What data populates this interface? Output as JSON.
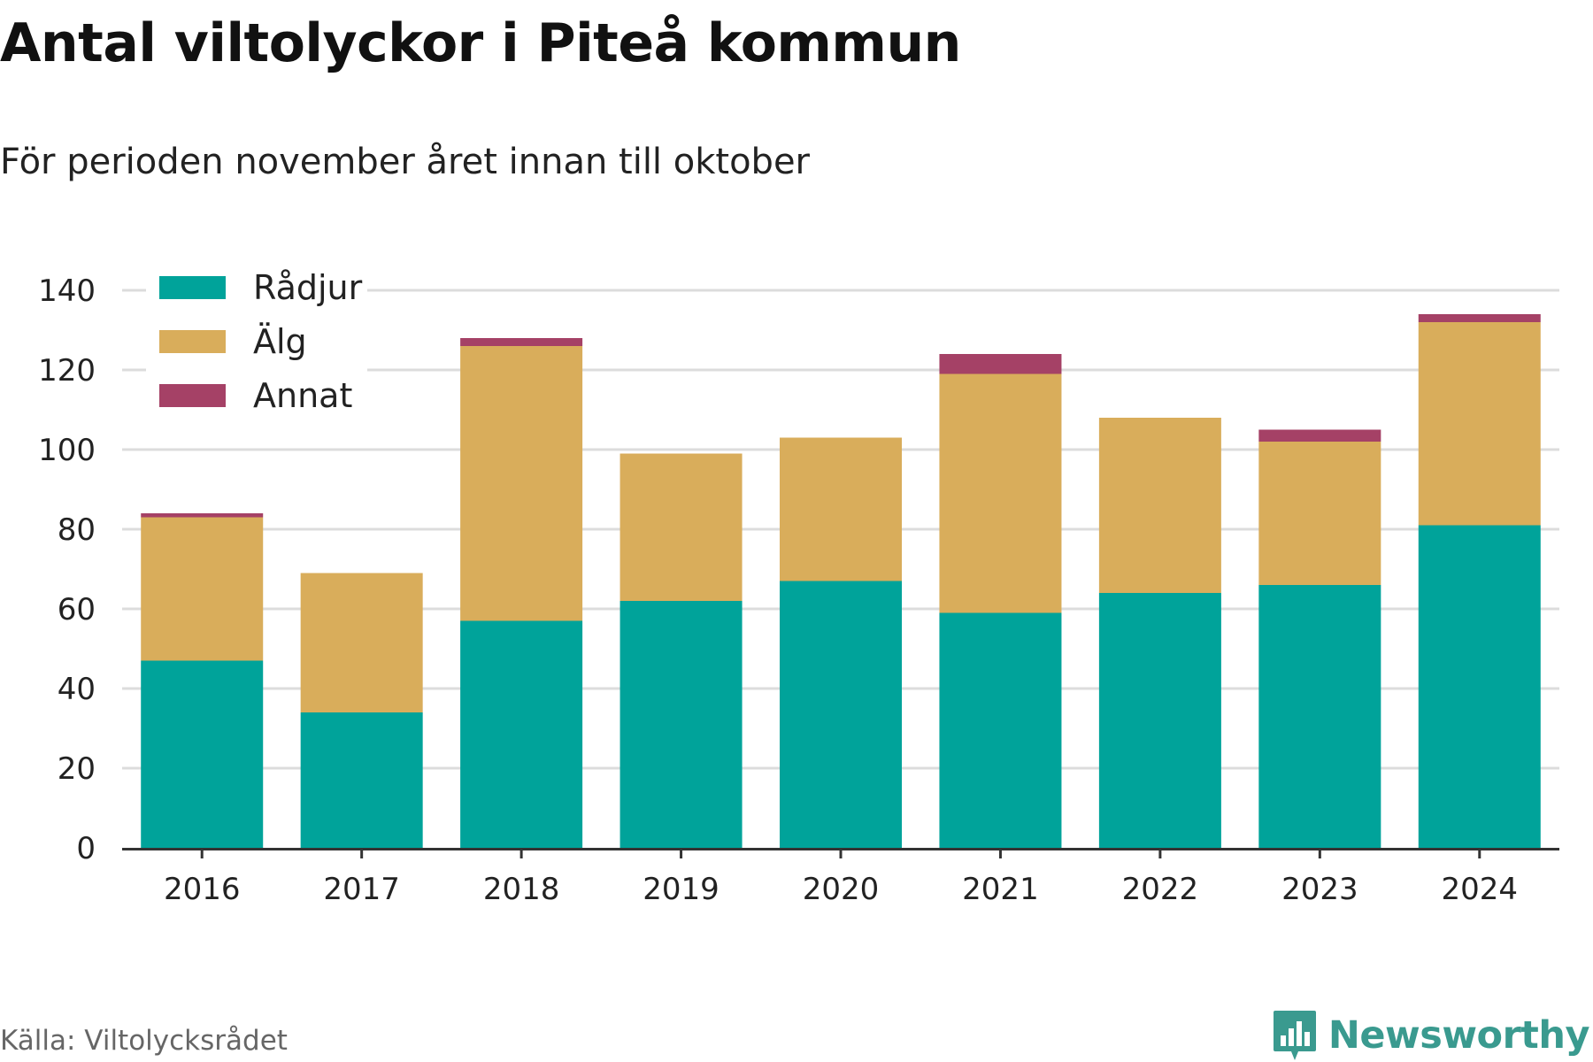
{
  "header": {
    "title": "Antal viltolyckor i Piteå kommun",
    "subtitle": "För perioden november året innan till oktober"
  },
  "footer": {
    "source": "Källa: Viltolycksrådet",
    "brand": "Newsworthy",
    "brand_icon": "bar-chart-icon"
  },
  "colors": {
    "Rådjur": "#00a39a",
    "Älg": "#d9ad5b",
    "Annat": "#a54166",
    "grid": "#dcdcdc",
    "axis": "#333333",
    "brand": "#3a9a8f"
  },
  "chart_data": {
    "type": "bar",
    "stacked": true,
    "categories": [
      "2016",
      "2017",
      "2018",
      "2019",
      "2020",
      "2021",
      "2022",
      "2023",
      "2024"
    ],
    "series": [
      {
        "name": "Rådjur",
        "values": [
          47,
          34,
          57,
          62,
          67,
          59,
          64,
          66,
          81
        ]
      },
      {
        "name": "Älg",
        "values": [
          36,
          35,
          69,
          37,
          36,
          60,
          44,
          36,
          51
        ]
      },
      {
        "name": "Annat",
        "values": [
          1,
          0,
          2,
          0,
          0,
          5,
          0,
          3,
          2
        ]
      }
    ],
    "yticks": [
      "0",
      "20",
      "40",
      "60",
      "80",
      "100",
      "120",
      "140"
    ],
    "ylim": [
      0,
      140
    ],
    "grid": true,
    "legend": "top-left"
  }
}
